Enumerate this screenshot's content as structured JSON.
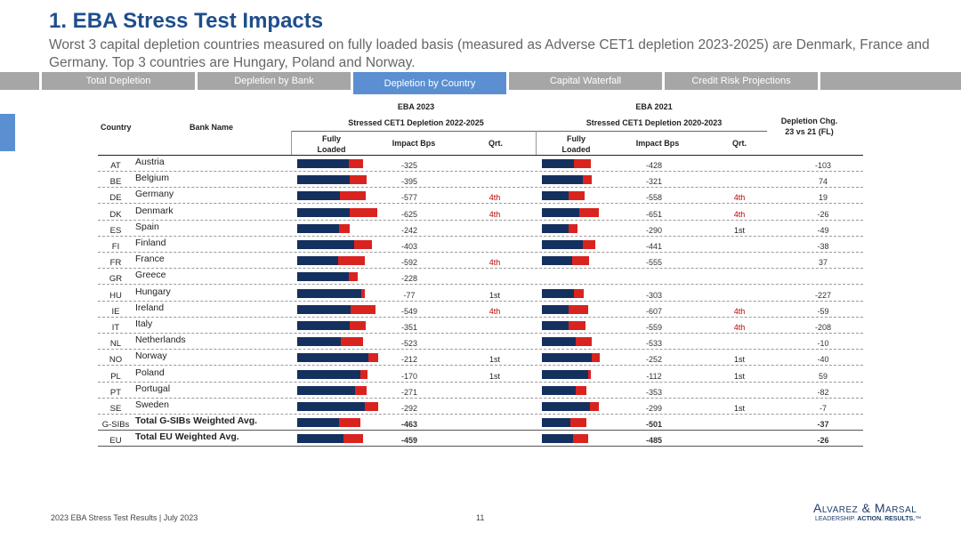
{
  "title": "1. EBA Stress Test Impacts",
  "subtitle": "Worst 3 capital depletion countries measured on fully loaded basis (measured as Adverse CET1 depletion 2023-2025) are Denmark, France and Germany. Top 3 countries are Hungary, Poland and Norway.",
  "tabs": [
    {
      "label": "Total Depletion",
      "active": false
    },
    {
      "label": "Depletion by Bank",
      "active": false
    },
    {
      "label": "Depletion by Country",
      "active": true
    },
    {
      "label": "Capital Waterfall",
      "active": false
    },
    {
      "label": "Credit Risk Projections",
      "active": false
    }
  ],
  "table": {
    "col_country": "Country",
    "col_bank": "Bank Name",
    "eba2023_title": "EBA 2023",
    "eba2023_sub": "Stressed CET1 Depletion 2022-2025",
    "eba2021_title": "EBA 2021",
    "eba2021_sub": "Stressed CET1 Depletion 2020-2023",
    "col_fully_loaded": "Fully Loaded",
    "col_impact": "Impact Bps",
    "col_qrt": "Qrt.",
    "col_chg": "Depletion Chg. 23 vs 21 (FL)",
    "rows": [
      {
        "code": "AT",
        "name": "Austria",
        "imp23": "-325",
        "q23": "",
        "imp21": "-428",
        "q21": "",
        "chg": "-103",
        "b23": [
          0.48,
          0.14
        ],
        "b21": [
          0.3,
          0.16
        ]
      },
      {
        "code": "BE",
        "name": "Belgium",
        "imp23": "-395",
        "q23": "",
        "imp21": "-321",
        "q21": "",
        "chg": "74",
        "b23": [
          0.49,
          0.16
        ],
        "b21": [
          0.38,
          0.09
        ]
      },
      {
        "code": "DE",
        "name": "Germany",
        "imp23": "-577",
        "q23": "4th",
        "imp21": "-558",
        "q21": "4th",
        "chg": "19",
        "b23": [
          0.4,
          0.24
        ],
        "b21": [
          0.25,
          0.15
        ]
      },
      {
        "code": "DK",
        "name": "Denmark",
        "imp23": "-625",
        "q23": "4th",
        "imp21": "-651",
        "q21": "4th",
        "chg": "-26",
        "b23": [
          0.49,
          0.26
        ],
        "b21": [
          0.35,
          0.18
        ]
      },
      {
        "code": "ES",
        "name": "Spain",
        "imp23": "-242",
        "q23": "",
        "imp21": "-290",
        "q21": "1st",
        "chg": "-49",
        "b23": [
          0.39,
          0.1
        ],
        "b21": [
          0.25,
          0.08
        ]
      },
      {
        "code": "FI",
        "name": "Finland",
        "imp23": "-403",
        "q23": "",
        "imp21": "-441",
        "q21": "",
        "chg": "-38",
        "b23": [
          0.53,
          0.17
        ],
        "b21": [
          0.38,
          0.12
        ]
      },
      {
        "code": "FR",
        "name": "France",
        "imp23": "-592",
        "q23": "4th",
        "imp21": "-555",
        "q21": "",
        "chg": "37",
        "b23": [
          0.38,
          0.25
        ],
        "b21": [
          0.28,
          0.16
        ]
      },
      {
        "code": "GR",
        "name": "Greece",
        "imp23": "-228",
        "q23": "",
        "imp21": "",
        "q21": "",
        "chg": "",
        "b23": [
          0.48,
          0.09
        ],
        "b21": [
          0,
          0
        ]
      },
      {
        "code": "HU",
        "name": "Hungary",
        "imp23": "-77",
        "q23": "1st",
        "imp21": "-303",
        "q21": "",
        "chg": "-227",
        "b23": [
          0.6,
          0.03
        ],
        "b21": [
          0.3,
          0.09
        ]
      },
      {
        "code": "IE",
        "name": "Ireland",
        "imp23": "-549",
        "q23": "4th",
        "imp21": "-607",
        "q21": "4th",
        "chg": "-59",
        "b23": [
          0.5,
          0.23
        ],
        "b21": [
          0.25,
          0.18
        ]
      },
      {
        "code": "IT",
        "name": "Italy",
        "imp23": "-351",
        "q23": "",
        "imp21": "-559",
        "q21": "4th",
        "chg": "-208",
        "b23": [
          0.49,
          0.15
        ],
        "b21": [
          0.25,
          0.16
        ]
      },
      {
        "code": "NL",
        "name": "Netherlands",
        "imp23": "-523",
        "q23": "",
        "imp21": "-533",
        "q21": "",
        "chg": "-10",
        "b23": [
          0.41,
          0.21
        ],
        "b21": [
          0.32,
          0.15
        ]
      },
      {
        "code": "NO",
        "name": "Norway",
        "imp23": "-212",
        "q23": "1st",
        "imp21": "-252",
        "q21": "1st",
        "chg": "-40",
        "b23": [
          0.67,
          0.09
        ],
        "b21": [
          0.47,
          0.07
        ]
      },
      {
        "code": "PL",
        "name": "Poland",
        "imp23": "-170",
        "q23": "1st",
        "imp21": "-112",
        "q21": "1st",
        "chg": "59",
        "b23": [
          0.59,
          0.07
        ],
        "b21": [
          0.43,
          0.03
        ]
      },
      {
        "code": "PT",
        "name": "Portugal",
        "imp23": "-271",
        "q23": "",
        "imp21": "-353",
        "q21": "",
        "chg": "-82",
        "b23": [
          0.54,
          0.11
        ],
        "b21": [
          0.32,
          0.1
        ]
      },
      {
        "code": "SE",
        "name": "Sweden",
        "imp23": "-292",
        "q23": "",
        "imp21": "-299",
        "q21": "1st",
        "chg": "-7",
        "b23": [
          0.63,
          0.13
        ],
        "b21": [
          0.45,
          0.08
        ]
      },
      {
        "code": "G-SIBs",
        "name": "Total G-SIBs Weighted Avg.",
        "imp23": "-463",
        "q23": "",
        "imp21": "-501",
        "q21": "",
        "chg": "-37",
        "b23": [
          0.39,
          0.2
        ],
        "b21": [
          0.27,
          0.15
        ],
        "total": true
      },
      {
        "code": "EU",
        "name": "Total EU Weighted Avg.",
        "imp23": "-459",
        "q23": "",
        "imp21": "-485",
        "q21": "",
        "chg": "-26",
        "b23": [
          0.43,
          0.19
        ],
        "b21": [
          0.29,
          0.14
        ],
        "total": true
      }
    ]
  },
  "footer": {
    "left": "2023 EBA Stress Test Results | July 2023",
    "page": "11",
    "logo": "Alvarez & Marsal",
    "tagline_prefix": "LEADERSHIP. ",
    "tagline_bold": "ACTION. RESULTS.",
    "tagline_mark": "™"
  },
  "colors": {
    "navy": "#14305f",
    "red": "#d9231f",
    "accent": "#5b8fd1"
  }
}
